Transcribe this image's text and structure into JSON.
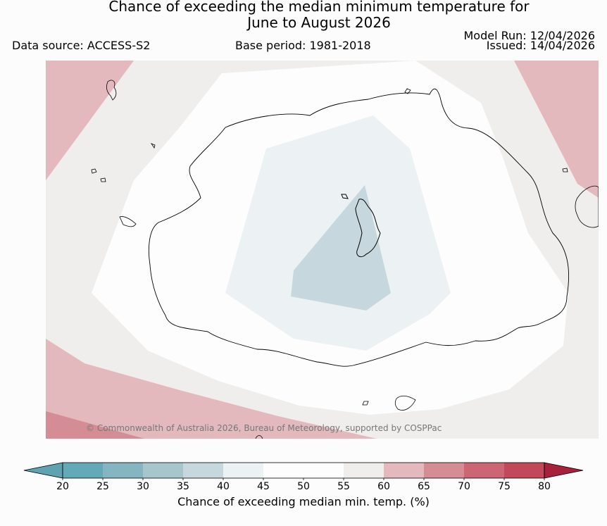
{
  "title_line1": "Chance of exceeding the median minimum temperature for",
  "title_line2": "June to August 2026",
  "data_source": "Data source: ACCESS-S2",
  "base_period": "Base period: 1981-2018",
  "model_run": "Model Run: 12/04/2026",
  "issued": "Issued: 14/04/2026",
  "copyright": "© Commonwealth of Australia 2026, Bureau of Meteorology, supported by COSPPac",
  "colorbar": {
    "label": "Chance of exceeding median min. temp. (%)",
    "ticks": [
      "20",
      "25",
      "30",
      "35",
      "40",
      "45",
      "50",
      "55",
      "60",
      "65",
      "70",
      "75",
      "80"
    ],
    "colors": [
      "#64a9b8",
      "#86b5c2",
      "#a6c6cc",
      "#c6d8de",
      "#ecf1f3",
      "#fdfdfd",
      "#fdfdfd",
      "#efeeec",
      "#e3b9be",
      "#d48d95",
      "#cb6672",
      "#c1495a"
    ],
    "under_color": "#5fa2b2",
    "over_color": "#a8213a"
  },
  "map_colors": {
    "c55_60": "#efeeec",
    "c60_65": "#e3b9be",
    "c65_70": "#d48d95",
    "c45_55": "#fdfdfd",
    "c40_45": "#ecf1f3",
    "c35_40": "#c6d8de"
  }
}
